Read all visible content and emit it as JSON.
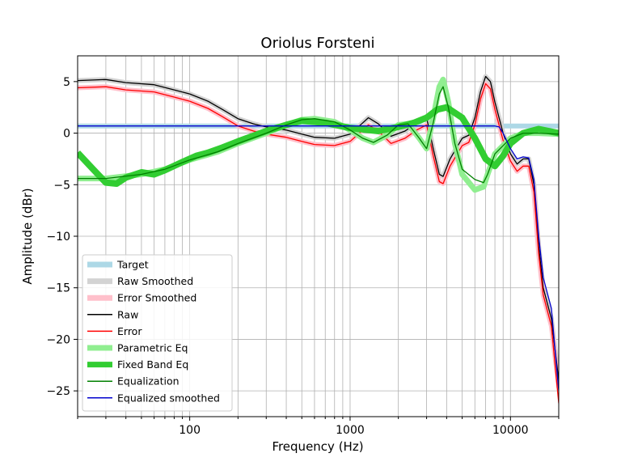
{
  "chart_data": {
    "type": "line",
    "title": "Oriolus Forsteni",
    "xlabel": "Frequency (Hz)",
    "ylabel": "Amplitude (dBr)",
    "xscale": "log",
    "xlim": [
      20,
      20000
    ],
    "ylim": [
      -27.5,
      7.5
    ],
    "grid": true,
    "legend_position": "lower-left",
    "x_ticks": [
      {
        "value": 100,
        "label": "100"
      },
      {
        "value": 1000,
        "label": "1000"
      },
      {
        "value": 10000,
        "label": "10000"
      }
    ],
    "y_ticks": [
      {
        "value": 5,
        "label": "5"
      },
      {
        "value": 0,
        "label": "0"
      },
      {
        "value": -5,
        "label": "−5"
      },
      {
        "value": -10,
        "label": "−10"
      },
      {
        "value": -15,
        "label": "−15"
      },
      {
        "value": -20,
        "label": "−20"
      },
      {
        "value": -25,
        "label": "−25"
      }
    ],
    "series": [
      {
        "name": "Target",
        "color": "#add8e6",
        "style": "thick",
        "points": [
          [
            20,
            0.7
          ],
          [
            20000,
            0.7
          ]
        ]
      },
      {
        "name": "Raw Smoothed",
        "color": "#d3d3d3",
        "style": "thick",
        "points": [
          [
            20,
            5.1
          ],
          [
            30,
            5.2
          ],
          [
            40,
            4.9
          ],
          [
            60,
            4.7
          ],
          [
            80,
            4.2
          ],
          [
            100,
            3.8
          ],
          [
            130,
            3.1
          ],
          [
            160,
            2.3
          ],
          [
            200,
            1.4
          ],
          [
            250,
            0.9
          ],
          [
            300,
            0.6
          ],
          [
            400,
            0.3
          ],
          [
            500,
            -0.1
          ],
          [
            600,
            -0.4
          ],
          [
            800,
            -0.5
          ],
          [
            1000,
            -0.1
          ],
          [
            1200,
            1.0
          ],
          [
            1300,
            1.5
          ],
          [
            1500,
            0.9
          ],
          [
            1800,
            -0.3
          ],
          [
            2200,
            0.2
          ],
          [
            2600,
            1.0
          ],
          [
            3000,
            1.5
          ],
          [
            3300,
            -1.5
          ],
          [
            3600,
            -4.0
          ],
          [
            3800,
            -4.2
          ],
          [
            4200,
            -2.5
          ],
          [
            5000,
            -0.5
          ],
          [
            5500,
            -0.2
          ],
          [
            6000,
            1.5
          ],
          [
            6500,
            4.0
          ],
          [
            7000,
            5.5
          ],
          [
            7500,
            5.0
          ],
          [
            8000,
            3.0
          ],
          [
            9000,
            0.0
          ],
          [
            10000,
            -2.0
          ],
          [
            11000,
            -3.0
          ],
          [
            12000,
            -2.5
          ],
          [
            13000,
            -2.5
          ],
          [
            14000,
            -5.0
          ],
          [
            15000,
            -11.0
          ],
          [
            16000,
            -15.0
          ],
          [
            18000,
            -18.0
          ],
          [
            20000,
            -24.0
          ]
        ]
      },
      {
        "name": "Error Smoothed",
        "color": "#ffc0cb",
        "style": "thick",
        "points": [
          [
            20,
            4.4
          ],
          [
            30,
            4.5
          ],
          [
            40,
            4.2
          ],
          [
            60,
            4.0
          ],
          [
            80,
            3.5
          ],
          [
            100,
            3.1
          ],
          [
            130,
            2.4
          ],
          [
            160,
            1.6
          ],
          [
            200,
            0.7
          ],
          [
            250,
            0.2
          ],
          [
            300,
            -0.1
          ],
          [
            400,
            -0.4
          ],
          [
            500,
            -0.8
          ],
          [
            600,
            -1.1
          ],
          [
            800,
            -1.2
          ],
          [
            1000,
            -0.8
          ],
          [
            1200,
            0.3
          ],
          [
            1300,
            0.8
          ],
          [
            1500,
            0.2
          ],
          [
            1800,
            -1.0
          ],
          [
            2200,
            -0.5
          ],
          [
            2600,
            0.3
          ],
          [
            3000,
            0.8
          ],
          [
            3300,
            -2.2
          ],
          [
            3600,
            -4.7
          ],
          [
            3800,
            -4.9
          ],
          [
            4200,
            -3.2
          ],
          [
            5000,
            -1.2
          ],
          [
            5500,
            -0.9
          ],
          [
            6000,
            0.8
          ],
          [
            6500,
            3.3
          ],
          [
            7000,
            4.8
          ],
          [
            7500,
            4.3
          ],
          [
            8000,
            2.3
          ],
          [
            9000,
            -0.7
          ],
          [
            10000,
            -2.7
          ],
          [
            11000,
            -3.7
          ],
          [
            12000,
            -3.2
          ],
          [
            13000,
            -3.2
          ],
          [
            14000,
            -5.7
          ],
          [
            15000,
            -11.7
          ],
          [
            16000,
            -15.7
          ],
          [
            18000,
            -18.7
          ],
          [
            20000,
            -24.7
          ]
        ]
      },
      {
        "name": "Raw",
        "color": "#000000",
        "style": "thin",
        "points": [
          [
            20,
            5.1
          ],
          [
            30,
            5.2
          ],
          [
            40,
            4.9
          ],
          [
            60,
            4.7
          ],
          [
            80,
            4.2
          ],
          [
            100,
            3.8
          ],
          [
            130,
            3.1
          ],
          [
            160,
            2.3
          ],
          [
            200,
            1.4
          ],
          [
            250,
            0.9
          ],
          [
            300,
            0.6
          ],
          [
            400,
            0.3
          ],
          [
            500,
            -0.1
          ],
          [
            600,
            -0.4
          ],
          [
            800,
            -0.5
          ],
          [
            1000,
            -0.1
          ],
          [
            1200,
            1.0
          ],
          [
            1300,
            1.5
          ],
          [
            1500,
            0.9
          ],
          [
            1800,
            -0.3
          ],
          [
            2200,
            0.2
          ],
          [
            2600,
            1.0
          ],
          [
            3000,
            1.5
          ],
          [
            3300,
            -1.5
          ],
          [
            3600,
            -4.0
          ],
          [
            3800,
            -4.2
          ],
          [
            4200,
            -2.5
          ],
          [
            5000,
            -0.5
          ],
          [
            5500,
            -0.2
          ],
          [
            6000,
            1.5
          ],
          [
            6500,
            4.0
          ],
          [
            7000,
            5.5
          ],
          [
            7500,
            5.0
          ],
          [
            8000,
            3.0
          ],
          [
            9000,
            0.0
          ],
          [
            10000,
            -2.0
          ],
          [
            11000,
            -3.0
          ],
          [
            12000,
            -2.5
          ],
          [
            13000,
            -2.5
          ],
          [
            14000,
            -5.0
          ],
          [
            15000,
            -11.0
          ],
          [
            16000,
            -15.0
          ],
          [
            18000,
            -18.0
          ],
          [
            20000,
            -24.0
          ]
        ]
      },
      {
        "name": "Error",
        "color": "#ff0000",
        "style": "thin",
        "points": [
          [
            20,
            4.4
          ],
          [
            30,
            4.5
          ],
          [
            40,
            4.2
          ],
          [
            60,
            4.0
          ],
          [
            80,
            3.5
          ],
          [
            100,
            3.1
          ],
          [
            130,
            2.4
          ],
          [
            160,
            1.6
          ],
          [
            200,
            0.7
          ],
          [
            250,
            0.2
          ],
          [
            300,
            -0.1
          ],
          [
            400,
            -0.4
          ],
          [
            500,
            -0.8
          ],
          [
            600,
            -1.1
          ],
          [
            800,
            -1.2
          ],
          [
            1000,
            -0.8
          ],
          [
            1200,
            0.3
          ],
          [
            1300,
            0.8
          ],
          [
            1500,
            0.2
          ],
          [
            1800,
            -1.0
          ],
          [
            2200,
            -0.5
          ],
          [
            2600,
            0.3
          ],
          [
            3000,
            0.8
          ],
          [
            3300,
            -2.2
          ],
          [
            3600,
            -4.7
          ],
          [
            3800,
            -4.9
          ],
          [
            4200,
            -3.2
          ],
          [
            5000,
            -1.2
          ],
          [
            5500,
            -0.9
          ],
          [
            6000,
            0.8
          ],
          [
            6500,
            3.3
          ],
          [
            7000,
            4.8
          ],
          [
            7500,
            4.3
          ],
          [
            8000,
            2.3
          ],
          [
            9000,
            -0.7
          ],
          [
            10000,
            -2.7
          ],
          [
            11000,
            -3.7
          ],
          [
            12000,
            -3.2
          ],
          [
            13000,
            -3.2
          ],
          [
            14000,
            -5.7
          ],
          [
            15000,
            -11.7
          ],
          [
            16000,
            -15.7
          ],
          [
            18000,
            -18.7
          ],
          [
            20000,
            -26.2
          ]
        ]
      },
      {
        "name": "Parametric Eq",
        "color": "#90ee90",
        "style": "thick",
        "points": [
          [
            20,
            -4.4
          ],
          [
            30,
            -4.4
          ],
          [
            50,
            -4.0
          ],
          [
            70,
            -3.5
          ],
          [
            100,
            -2.6
          ],
          [
            150,
            -1.8
          ],
          [
            200,
            -1.0
          ],
          [
            300,
            0.0
          ],
          [
            400,
            0.8
          ],
          [
            500,
            1.3
          ],
          [
            600,
            1.4
          ],
          [
            800,
            1.1
          ],
          [
            1000,
            0.3
          ],
          [
            1200,
            -0.5
          ],
          [
            1400,
            -0.9
          ],
          [
            1700,
            -0.2
          ],
          [
            2000,
            0.8
          ],
          [
            2300,
            0.9
          ],
          [
            2700,
            -0.5
          ],
          [
            3000,
            -1.5
          ],
          [
            3300,
            1.5
          ],
          [
            3600,
            4.5
          ],
          [
            3800,
            5.2
          ],
          [
            4100,
            3.0
          ],
          [
            4500,
            -1.0
          ],
          [
            5000,
            -4.0
          ],
          [
            6000,
            -5.5
          ],
          [
            6800,
            -5.2
          ],
          [
            7200,
            -4.0
          ],
          [
            8000,
            -2.0
          ],
          [
            10000,
            -0.5
          ],
          [
            12000,
            0.0
          ],
          [
            15000,
            0.0
          ],
          [
            20000,
            -0.1
          ]
        ]
      },
      {
        "name": "Fixed Band Eq",
        "color": "#32cd32",
        "style": "thick",
        "points": [
          [
            20,
            -1.9
          ],
          [
            25,
            -3.5
          ],
          [
            30,
            -4.8
          ],
          [
            35,
            -4.9
          ],
          [
            40,
            -4.3
          ],
          [
            50,
            -3.8
          ],
          [
            60,
            -4.0
          ],
          [
            70,
            -3.6
          ],
          [
            90,
            -2.8
          ],
          [
            110,
            -2.2
          ],
          [
            130,
            -1.9
          ],
          [
            160,
            -1.4
          ],
          [
            200,
            -0.8
          ],
          [
            300,
            0.2
          ],
          [
            400,
            0.8
          ],
          [
            500,
            1.2
          ],
          [
            700,
            1.0
          ],
          [
            1000,
            0.5
          ],
          [
            1500,
            0.2
          ],
          [
            2000,
            0.6
          ],
          [
            2500,
            1.0
          ],
          [
            3000,
            1.5
          ],
          [
            3500,
            2.3
          ],
          [
            4000,
            2.5
          ],
          [
            5000,
            1.5
          ],
          [
            6000,
            -0.5
          ],
          [
            7000,
            -2.5
          ],
          [
            8000,
            -3.2
          ],
          [
            9000,
            -2.2
          ],
          [
            10000,
            -1.0
          ],
          [
            12000,
            0.0
          ],
          [
            15000,
            0.4
          ],
          [
            20000,
            0.0
          ]
        ]
      },
      {
        "name": "Equalization",
        "color": "#008000",
        "style": "thin",
        "points": [
          [
            20,
            -4.4
          ],
          [
            30,
            -4.4
          ],
          [
            50,
            -4.0
          ],
          [
            70,
            -3.5
          ],
          [
            100,
            -2.6
          ],
          [
            150,
            -1.8
          ],
          [
            200,
            -1.0
          ],
          [
            300,
            0.0
          ],
          [
            400,
            0.8
          ],
          [
            500,
            1.3
          ],
          [
            600,
            1.4
          ],
          [
            800,
            1.1
          ],
          [
            1000,
            0.3
          ],
          [
            1200,
            -0.5
          ],
          [
            1400,
            -0.9
          ],
          [
            1700,
            -0.2
          ],
          [
            2000,
            0.8
          ],
          [
            2300,
            0.9
          ],
          [
            2700,
            -0.5
          ],
          [
            3000,
            -1.5
          ],
          [
            3300,
            1.0
          ],
          [
            3600,
            3.8
          ],
          [
            3800,
            4.5
          ],
          [
            4100,
            2.5
          ],
          [
            4500,
            -1.0
          ],
          [
            5000,
            -3.5
          ],
          [
            6000,
            -4.5
          ],
          [
            6800,
            -4.8
          ],
          [
            7200,
            -4.0
          ],
          [
            8000,
            -2.0
          ],
          [
            10000,
            -0.5
          ],
          [
            12000,
            0.0
          ],
          [
            15000,
            0.0
          ],
          [
            20000,
            -0.1
          ]
        ]
      },
      {
        "name": "Equalized smoothed",
        "color": "#0000cd",
        "style": "thin",
        "points": [
          [
            20,
            0.7
          ],
          [
            100,
            0.7
          ],
          [
            1000,
            0.7
          ],
          [
            5000,
            0.7
          ],
          [
            8000,
            0.7
          ],
          [
            8500,
            0.6
          ],
          [
            9000,
            0.0
          ],
          [
            10000,
            -1.5
          ],
          [
            11000,
            -2.5
          ],
          [
            12000,
            -2.3
          ],
          [
            13000,
            -2.4
          ],
          [
            14000,
            -4.5
          ],
          [
            15000,
            -10.0
          ],
          [
            16000,
            -14.0
          ],
          [
            18000,
            -17.0
          ],
          [
            20000,
            -25.0
          ]
        ]
      }
    ]
  }
}
